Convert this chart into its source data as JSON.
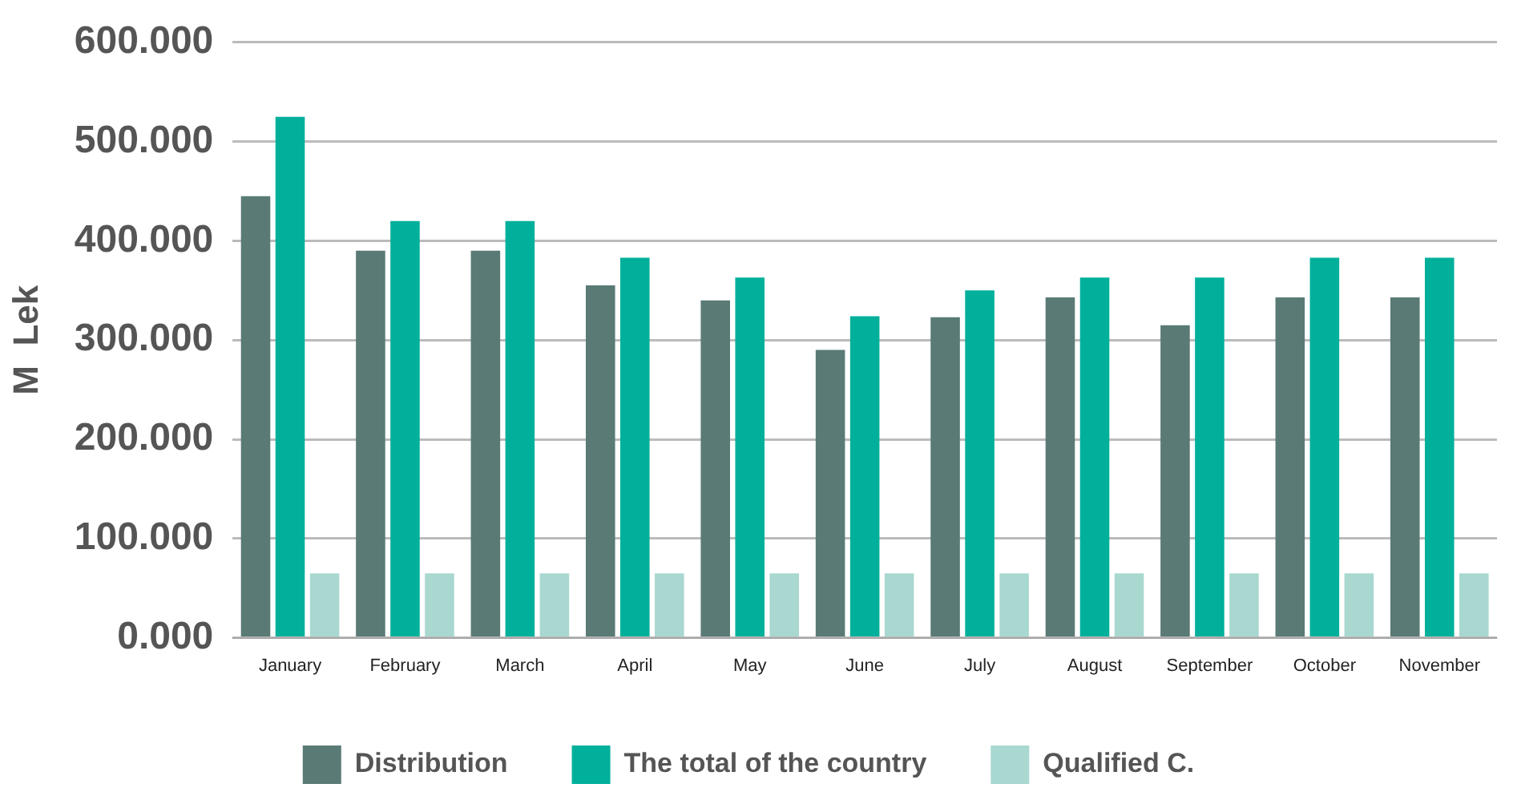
{
  "chart_data": {
    "type": "bar",
    "ylabel": "M  Lek",
    "categories": [
      "January",
      "February",
      "March",
      "April",
      "May",
      "June",
      "July",
      "August",
      "September",
      "October",
      "November"
    ],
    "series": [
      {
        "name": "Distribution",
        "color": "#5a7a76",
        "values": [
          445,
          390,
          390,
          355,
          340,
          290,
          323,
          343,
          315,
          343,
          343
        ]
      },
      {
        "name": "The total of the country",
        "color": "#00b09b",
        "values": [
          525,
          420,
          420,
          383,
          363,
          324,
          350,
          363,
          363,
          383,
          383
        ]
      },
      {
        "name": "Qualified C.",
        "color": "#a8d8d0",
        "values": [
          65,
          65,
          65,
          65,
          65,
          65,
          65,
          65,
          65,
          65,
          65
        ]
      }
    ],
    "ylim": [
      0,
      600
    ],
    "yticks": [
      {
        "value": 0,
        "label": "0.000"
      },
      {
        "value": 100,
        "label": "100.000"
      },
      {
        "value": 200,
        "label": "200.000"
      },
      {
        "value": 300,
        "label": "300.000"
      },
      {
        "value": 400,
        "label": "400.000"
      },
      {
        "value": 500,
        "label": "500.000"
      },
      {
        "value": 600,
        "label": "600.000"
      }
    ],
    "grid": "y",
    "legend": "bottom"
  }
}
